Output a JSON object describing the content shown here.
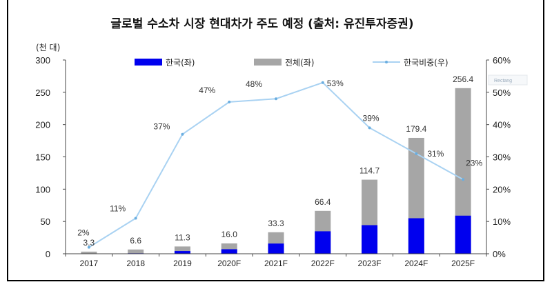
{
  "chart_data": {
    "type": "bar",
    "title": "글로벌 수소차 시장 현대차가 주도 예정 (출처: 유진투자증권)",
    "y_unit_label": "(천 대)",
    "categories": [
      "2017",
      "2018",
      "2019",
      "2020F",
      "2021F",
      "2022F",
      "2023F",
      "2024F",
      "2025F"
    ],
    "series": [
      {
        "name": "한국(좌)",
        "axis": "left",
        "kind": "bar",
        "color": "#0000ee",
        "values": [
          0.1,
          0.7,
          4.2,
          7.0,
          15.8,
          34.8,
          44.3,
          55.0,
          59.0
        ]
      },
      {
        "name": "전체(좌)",
        "axis": "left",
        "kind": "bar",
        "color": "#a6a6a6",
        "values": [
          3.3,
          6.6,
          11.3,
          16.0,
          33.3,
          66.4,
          114.7,
          179.4,
          256.4
        ]
      },
      {
        "name": "한국비중(우)",
        "axis": "right",
        "kind": "line",
        "color": "#a9d2f2",
        "values": [
          2,
          11,
          37,
          47,
          48,
          53,
          39,
          31,
          23
        ]
      }
    ],
    "total_labels": [
      "3.3",
      "6.6",
      "11.3",
      "16.0",
      "33.3",
      "66.4",
      "114.7",
      "179.4",
      "256.4"
    ],
    "share_labels": [
      "2%",
      "11%",
      "37%",
      "47%",
      "48%",
      "53%",
      "39%",
      "31%",
      "23%"
    ],
    "left_axis": {
      "ylim": [
        0,
        300
      ],
      "ticks": [
        "0",
        "50",
        "100",
        "150",
        "200",
        "250",
        "300"
      ]
    },
    "right_axis": {
      "ylim": [
        0,
        60
      ],
      "ticks": [
        "0%",
        "10%",
        "20%",
        "30%",
        "40%",
        "50%",
        "60%"
      ]
    },
    "legend_position": "top",
    "grid": false,
    "stub_text": "Rectang"
  }
}
